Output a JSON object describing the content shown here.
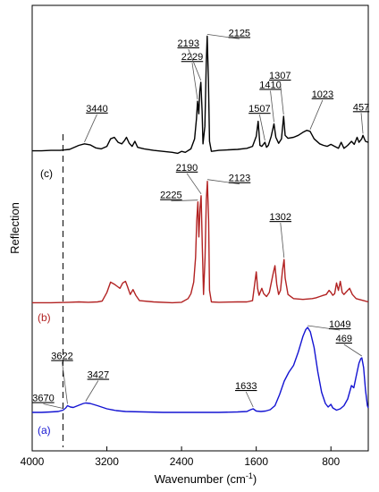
{
  "chart_data": {
    "type": "line",
    "xlabel": "Wavenumber (cm",
    "xlabel_sup": "-1",
    "xlabel_close": ")",
    "ylabel": "Reflection",
    "xlim": [
      4000,
      400
    ],
    "xticks": [
      4000,
      3200,
      2400,
      1600,
      800
    ],
    "xtick_labels": [
      "4000",
      "3200",
      "2400",
      "1600",
      "800"
    ],
    "yticks_shown": false,
    "grid": false,
    "dashed_reference_x": 3670,
    "series": [
      {
        "name": "(c)",
        "color": "#000000",
        "points": [
          [
            4000,
            0.31
          ],
          [
            3900,
            0.31
          ],
          [
            3800,
            0.32
          ],
          [
            3700,
            0.32
          ],
          [
            3600,
            0.34
          ],
          [
            3500,
            0.42
          ],
          [
            3440,
            0.45
          ],
          [
            3380,
            0.43
          ],
          [
            3320,
            0.37
          ],
          [
            3260,
            0.35
          ],
          [
            3200,
            0.4
          ],
          [
            3160,
            0.55
          ],
          [
            3120,
            0.58
          ],
          [
            3080,
            0.48
          ],
          [
            3040,
            0.45
          ],
          [
            3010,
            0.52
          ],
          [
            2990,
            0.58
          ],
          [
            2960,
            0.46
          ],
          [
            2930,
            0.4
          ],
          [
            2900,
            0.5
          ],
          [
            2870,
            0.38
          ],
          [
            2800,
            0.35
          ],
          [
            2700,
            0.32
          ],
          [
            2600,
            0.3
          ],
          [
            2500,
            0.28
          ],
          [
            2440,
            0.26
          ],
          [
            2400,
            0.3
          ],
          [
            2360,
            0.28
          ],
          [
            2300,
            0.35
          ],
          [
            2260,
            0.55
          ],
          [
            2240,
            0.95
          ],
          [
            2229,
            1.3
          ],
          [
            2215,
            1.05
          ],
          [
            2205,
            1.5
          ],
          [
            2193,
            1.68
          ],
          [
            2180,
            1.1
          ],
          [
            2170,
            0.45
          ],
          [
            2150,
            0.8
          ],
          [
            2135,
            2.1
          ],
          [
            2125,
            2.6
          ],
          [
            2112,
            1.7
          ],
          [
            2100,
            0.5
          ],
          [
            2080,
            0.3
          ],
          [
            2000,
            0.32
          ],
          [
            1900,
            0.33
          ],
          [
            1800,
            0.34
          ],
          [
            1700,
            0.36
          ],
          [
            1640,
            0.4
          ],
          [
            1600,
            0.6
          ],
          [
            1580,
            0.9
          ],
          [
            1560,
            0.42
          ],
          [
            1540,
            0.4
          ],
          [
            1507,
            0.48
          ],
          [
            1490,
            0.38
          ],
          [
            1470,
            0.42
          ],
          [
            1440,
            0.6
          ],
          [
            1410,
            0.85
          ],
          [
            1390,
            0.58
          ],
          [
            1360,
            0.46
          ],
          [
            1330,
            0.55
          ],
          [
            1307,
            1.0
          ],
          [
            1290,
            0.62
          ],
          [
            1260,
            0.56
          ],
          [
            1200,
            0.58
          ],
          [
            1150,
            0.62
          ],
          [
            1100,
            0.68
          ],
          [
            1060,
            0.72
          ],
          [
            1023,
            0.7
          ],
          [
            980,
            0.55
          ],
          [
            920,
            0.45
          ],
          [
            880,
            0.42
          ],
          [
            840,
            0.4
          ],
          [
            800,
            0.44
          ],
          [
            760,
            0.4
          ],
          [
            720,
            0.36
          ],
          [
            690,
            0.48
          ],
          [
            660,
            0.36
          ],
          [
            620,
            0.42
          ],
          [
            580,
            0.5
          ],
          [
            550,
            0.44
          ],
          [
            520,
            0.58
          ],
          [
            500,
            0.48
          ],
          [
            470,
            0.55
          ],
          [
            457,
            0.62
          ],
          [
            430,
            0.5
          ],
          [
            400,
            0.48
          ]
        ],
        "annotations": [
          {
            "label": "3440",
            "x": 3440
          },
          {
            "label": "2229",
            "x": 2229
          },
          {
            "label": "2193",
            "x": 2193
          },
          {
            "label": "2125",
            "x": 2125
          },
          {
            "label": "1507",
            "x": 1507
          },
          {
            "label": "1410",
            "x": 1410
          },
          {
            "label": "1307",
            "x": 1307
          },
          {
            "label": "1023",
            "x": 1023
          },
          {
            "label": "457",
            "x": 457
          }
        ]
      },
      {
        "name": "(b)",
        "color": "#b22222",
        "points": [
          [
            4000,
            0.1
          ],
          [
            3800,
            0.1
          ],
          [
            3600,
            0.11
          ],
          [
            3500,
            0.12
          ],
          [
            3400,
            0.11
          ],
          [
            3300,
            0.12
          ],
          [
            3250,
            0.14
          ],
          [
            3200,
            0.35
          ],
          [
            3160,
            0.6
          ],
          [
            3120,
            0.55
          ],
          [
            3090,
            0.5
          ],
          [
            3060,
            0.45
          ],
          [
            3030,
            0.58
          ],
          [
            3000,
            0.62
          ],
          [
            2980,
            0.5
          ],
          [
            2950,
            0.3
          ],
          [
            2920,
            0.42
          ],
          [
            2890,
            0.28
          ],
          [
            2850,
            0.15
          ],
          [
            2700,
            0.12
          ],
          [
            2500,
            0.1
          ],
          [
            2400,
            0.11
          ],
          [
            2330,
            0.2
          ],
          [
            2300,
            0.32
          ],
          [
            2270,
            0.6
          ],
          [
            2250,
            1.2
          ],
          [
            2237,
            2.1
          ],
          [
            2225,
            2.55
          ],
          [
            2214,
            1.7
          ],
          [
            2202,
            2.4
          ],
          [
            2190,
            2.7
          ],
          [
            2178,
            1.5
          ],
          [
            2165,
            0.3
          ],
          [
            2148,
            1.2
          ],
          [
            2135,
            2.6
          ],
          [
            2123,
            3.05
          ],
          [
            2110,
            2.1
          ],
          [
            2100,
            0.4
          ],
          [
            2080,
            0.12
          ],
          [
            2000,
            0.11
          ],
          [
            1800,
            0.12
          ],
          [
            1700,
            0.12
          ],
          [
            1640,
            0.15
          ],
          [
            1620,
            0.5
          ],
          [
            1600,
            0.85
          ],
          [
            1585,
            0.45
          ],
          [
            1570,
            0.28
          ],
          [
            1540,
            0.45
          ],
          [
            1520,
            0.32
          ],
          [
            1490,
            0.25
          ],
          [
            1460,
            0.35
          ],
          [
            1420,
            0.8
          ],
          [
            1400,
            1.0
          ],
          [
            1380,
            0.55
          ],
          [
            1360,
            0.3
          ],
          [
            1340,
            0.4
          ],
          [
            1318,
            0.9
          ],
          [
            1302,
            1.15
          ],
          [
            1290,
            0.7
          ],
          [
            1260,
            0.3
          ],
          [
            1200,
            0.2
          ],
          [
            1100,
            0.18
          ],
          [
            1000,
            0.2
          ],
          [
            960,
            0.22
          ],
          [
            920,
            0.25
          ],
          [
            880,
            0.28
          ],
          [
            850,
            0.3
          ],
          [
            820,
            0.4
          ],
          [
            800,
            0.35
          ],
          [
            780,
            0.28
          ],
          [
            760,
            0.32
          ],
          [
            740,
            0.58
          ],
          [
            720,
            0.4
          ],
          [
            700,
            0.62
          ],
          [
            680,
            0.35
          ],
          [
            660,
            0.3
          ],
          [
            640,
            0.35
          ],
          [
            600,
            0.45
          ],
          [
            570,
            0.3
          ],
          [
            530,
            0.2
          ],
          [
            500,
            0.18
          ],
          [
            450,
            0.15
          ],
          [
            400,
            0.12
          ]
        ],
        "annotations": [
          {
            "label": "2225",
            "x": 2225
          },
          {
            "label": "2190",
            "x": 2190
          },
          {
            "label": "2123",
            "x": 2123
          },
          {
            "label": "1302",
            "x": 1302
          }
        ]
      },
      {
        "name": "(a)",
        "color": "#1414d2",
        "points": [
          [
            4000,
            0.1
          ],
          [
            3900,
            0.1
          ],
          [
            3800,
            0.11
          ],
          [
            3720,
            0.12
          ],
          [
            3670,
            0.15
          ],
          [
            3640,
            0.2
          ],
          [
            3622,
            0.25
          ],
          [
            3590,
            0.22
          ],
          [
            3560,
            0.21
          ],
          [
            3500,
            0.26
          ],
          [
            3450,
            0.3
          ],
          [
            3427,
            0.31
          ],
          [
            3380,
            0.3
          ],
          [
            3300,
            0.25
          ],
          [
            3200,
            0.18
          ],
          [
            3100,
            0.14
          ],
          [
            3000,
            0.12
          ],
          [
            2800,
            0.11
          ],
          [
            2600,
            0.1
          ],
          [
            2400,
            0.1
          ],
          [
            2200,
            0.1
          ],
          [
            2000,
            0.1
          ],
          [
            1800,
            0.11
          ],
          [
            1700,
            0.12
          ],
          [
            1660,
            0.16
          ],
          [
            1633,
            0.18
          ],
          [
            1600,
            0.13
          ],
          [
            1550,
            0.12
          ],
          [
            1500,
            0.13
          ],
          [
            1450,
            0.16
          ],
          [
            1400,
            0.25
          ],
          [
            1350,
            0.5
          ],
          [
            1300,
            0.8
          ],
          [
            1250,
            1.0
          ],
          [
            1200,
            1.15
          ],
          [
            1150,
            1.45
          ],
          [
            1100,
            1.8
          ],
          [
            1070,
            1.95
          ],
          [
            1049,
            2.0
          ],
          [
            1020,
            1.9
          ],
          [
            980,
            1.55
          ],
          [
            940,
            1.0
          ],
          [
            900,
            0.55
          ],
          [
            860,
            0.3
          ],
          [
            830,
            0.22
          ],
          [
            800,
            0.28
          ],
          [
            780,
            0.2
          ],
          [
            740,
            0.15
          ],
          [
            700,
            0.18
          ],
          [
            660,
            0.25
          ],
          [
            620,
            0.4
          ],
          [
            580,
            0.7
          ],
          [
            555,
            0.65
          ],
          [
            530,
            0.9
          ],
          [
            500,
            1.2
          ],
          [
            480,
            1.3
          ],
          [
            469,
            1.32
          ],
          [
            450,
            1.1
          ],
          [
            430,
            0.6
          ],
          [
            410,
            0.25
          ],
          [
            400,
            0.2
          ]
        ],
        "annotations": [
          {
            "label": "3670",
            "x": 3670
          },
          {
            "label": "3622",
            "x": 3622
          },
          {
            "label": "3427",
            "x": 3427
          },
          {
            "label": "1633",
            "x": 1633
          },
          {
            "label": "1049",
            "x": 1049
          },
          {
            "label": "469",
            "x": 469
          }
        ]
      }
    ]
  }
}
